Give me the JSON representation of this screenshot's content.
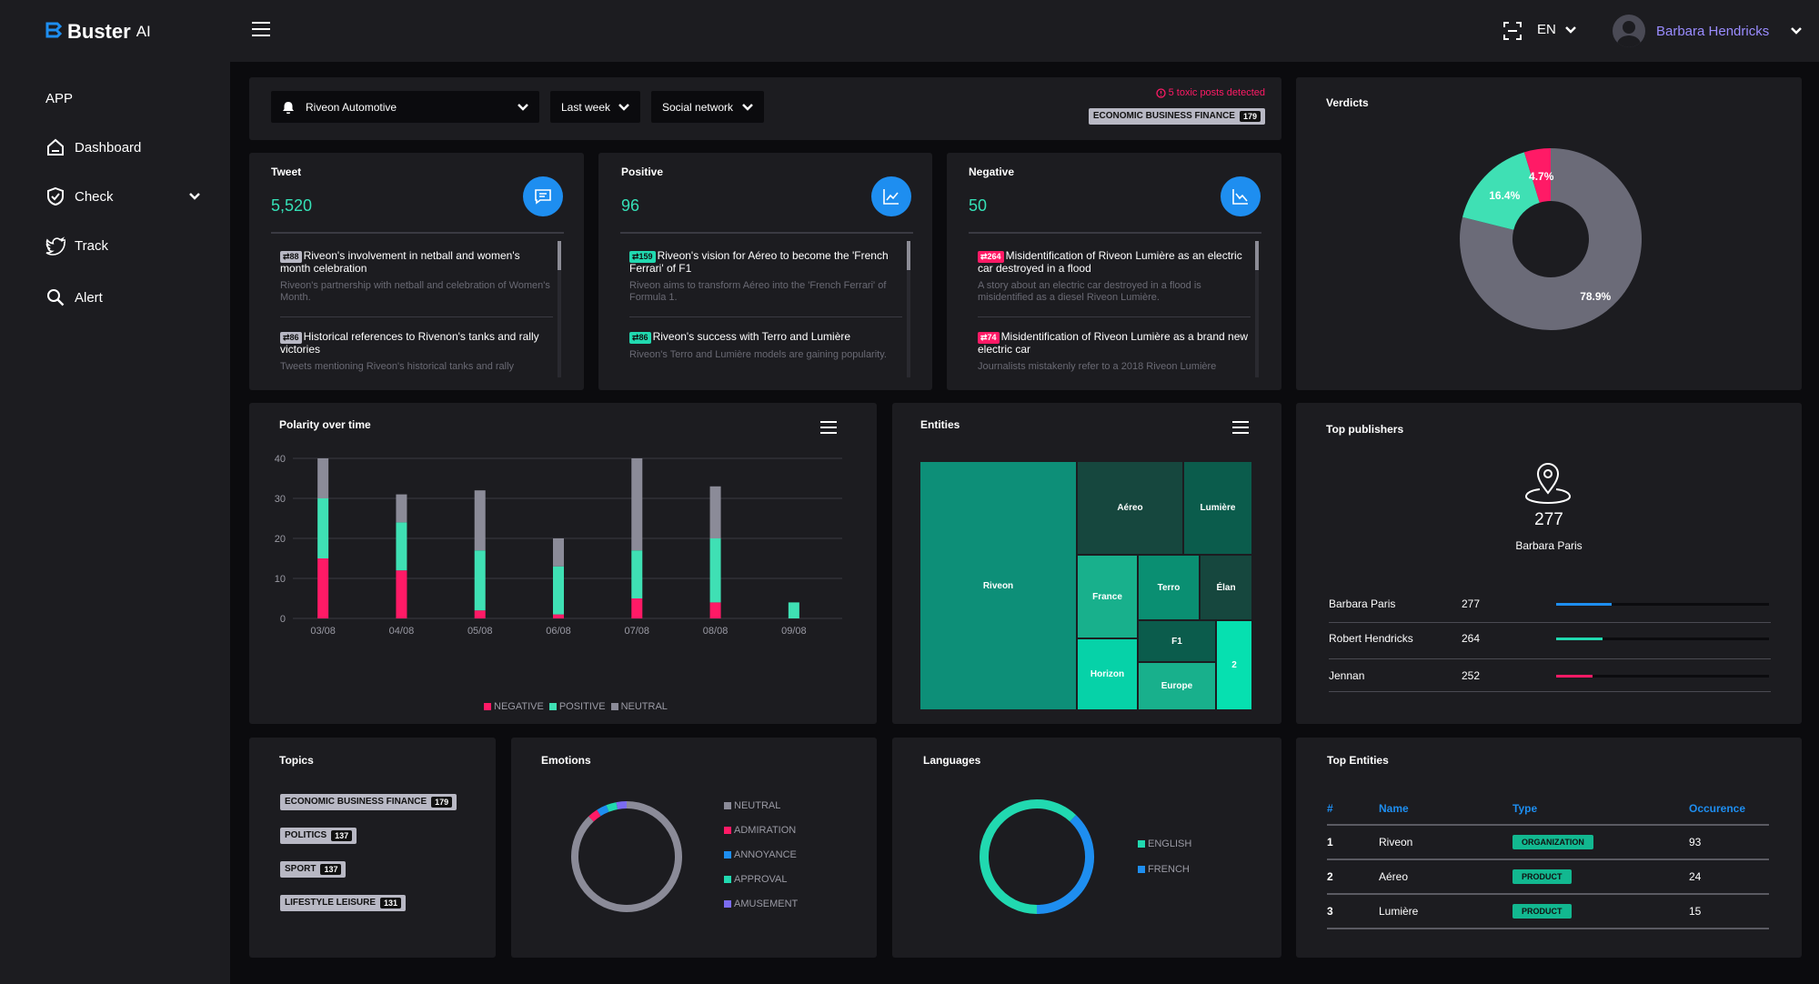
{
  "brand": {
    "name": "Buster",
    "suffix": "AI"
  },
  "sidebar": {
    "section": "APP",
    "items": [
      {
        "label": "Dashboard",
        "icon": "home-icon"
      },
      {
        "label": "Check",
        "icon": "shield-check-icon"
      },
      {
        "label": "Track",
        "icon": "twitter-bird-icon"
      },
      {
        "label": "Alert",
        "icon": "search-icon"
      }
    ]
  },
  "header": {
    "lang": "EN",
    "user": "Barbara Hendricks"
  },
  "filters": {
    "brand": "Riveon Automotive",
    "period": "Last week",
    "network": "Social network",
    "alert": "5 toxic posts detected",
    "topic_tag": {
      "label": "ECONOMIC BUSINESS FINANCE",
      "count": "179"
    }
  },
  "tweet_card": {
    "title": "Tweet",
    "value": "5,520",
    "posts": [
      {
        "rt": "88",
        "title": "Riveon's involvement in netball and women's month celebration",
        "desc": "Riveon's partnership with netball and celebration of Women's Month."
      },
      {
        "rt": "86",
        "title": "Historical references to Rivenon's tanks and rally victories",
        "desc": "Tweets mentioning Riveon's historical tanks and rally"
      }
    ]
  },
  "positive_card": {
    "title": "Positive",
    "value": "96",
    "posts": [
      {
        "rt": "159",
        "title": "Riveon's vision for Aéreo to become the 'French Ferrari' of F1",
        "desc": "Riveon aims to transform Aéreo into the 'French Ferrari' of Formula 1."
      },
      {
        "rt": "86",
        "title": "Riveon's success with Terro and Lumière",
        "desc": "Riveon's Terro and Lumière models are gaining popularity."
      }
    ]
  },
  "negative_card": {
    "title": "Negative",
    "value": "50",
    "posts": [
      {
        "rt": "264",
        "title": "Misidentification of Riveon Lumière as an electric car destroyed in a flood",
        "desc": "A story about an electric car destroyed in a flood is misidentified as a diesel Riveon Lumière."
      },
      {
        "rt": "74",
        "title": "Misidentification of Riveon Lumière as a brand new electric car",
        "desc": "Journalists mistakenly refer to a 2018 Riveon Lumière"
      }
    ]
  },
  "verdicts": {
    "title": "Verdicts",
    "colors": {
      "neutral": "#6b6b78",
      "positive": "#3fe0b4",
      "negative": "#ff1a66"
    }
  },
  "polarity": {
    "title": "Polarity over time"
  },
  "entities": {
    "title": "Entities",
    "cells": [
      "Riveon",
      "Aéreo",
      "Lumière",
      "France",
      "Terro",
      "Élan",
      "F1",
      "Horizon",
      "Europe",
      "2"
    ]
  },
  "publishers": {
    "title": "Top publishers",
    "featured": {
      "count": "277",
      "name": "Barbara Paris"
    },
    "rows": [
      {
        "name": "Barbara Paris",
        "count": "277",
        "share": 0.26,
        "color": "#1e8ef0"
      },
      {
        "name": "Robert Hendricks",
        "count": "264",
        "share": 0.22,
        "color": "#21d9b0"
      },
      {
        "name": "Jennan",
        "count": "252",
        "share": 0.17,
        "color": "#ff1a66"
      }
    ]
  },
  "topics": {
    "title": "Topics",
    "items": [
      {
        "label": "ECONOMIC BUSINESS FINANCE",
        "count": "179"
      },
      {
        "label": "POLITICS",
        "count": "137"
      },
      {
        "label": "SPORT",
        "count": "137"
      },
      {
        "label": "LIFESTYLE LEISURE",
        "count": "131"
      }
    ]
  },
  "emotions": {
    "title": "Emotions",
    "legend": [
      "NEUTRAL",
      "ADMIRATION",
      "ANNOYANCE",
      "APPROVAL",
      "AMUSEMENT"
    ]
  },
  "languages": {
    "title": "Languages",
    "legend": [
      "ENGLISH",
      "FRENCH"
    ]
  },
  "top_entities": {
    "title": "Top Entities",
    "headers": [
      "#",
      "Name",
      "Type",
      "Occurence"
    ],
    "rows": [
      {
        "rank": "1",
        "name": "Riveon",
        "type": "ORGANIZATION",
        "count": "93"
      },
      {
        "rank": "2",
        "name": "Aéreo",
        "type": "PRODUCT",
        "count": "24"
      },
      {
        "rank": "3",
        "name": "Lumière",
        "type": "PRODUCT",
        "count": "15"
      }
    ]
  },
  "chart_data": [
    {
      "type": "bar",
      "stacked": true,
      "categories": [
        "03/08",
        "04/08",
        "05/08",
        "06/08",
        "07/08",
        "08/08",
        "09/08"
      ],
      "series": [
        {
          "name": "NEGATIVE",
          "values": [
            15,
            12,
            2,
            1,
            5,
            4,
            0
          ]
        },
        {
          "name": "POSITIVE",
          "values": [
            15,
            12,
            15,
            12,
            12,
            16,
            4
          ]
        },
        {
          "name": "NEUTRAL",
          "values": [
            10,
            7,
            15,
            7,
            23,
            13,
            0
          ]
        }
      ],
      "ylim": [
        0,
        40
      ],
      "yticks": [
        "0",
        "10",
        "20",
        "30",
        "40"
      ],
      "legend": "bottom",
      "grid": true
    },
    {
      "type": "pie",
      "donut": true,
      "labels": [
        "Neutral",
        "Positive",
        "Negative"
      ],
      "values": [
        78.9,
        16.4,
        4.7
      ],
      "value_labels": [
        "78.9%",
        "16.4%",
        "4.7%"
      ]
    },
    {
      "type": "pie",
      "donut": true,
      "labels": [
        "NEUTRAL",
        "ADMIRATION",
        "ANNOYANCE",
        "APPROVAL",
        "AMUSEMENT"
      ],
      "values": [
        88,
        3,
        3,
        3,
        3
      ]
    },
    {
      "type": "pie",
      "donut": true,
      "labels": [
        "ENGLISH",
        "FRENCH"
      ],
      "values": [
        62,
        38
      ]
    }
  ]
}
